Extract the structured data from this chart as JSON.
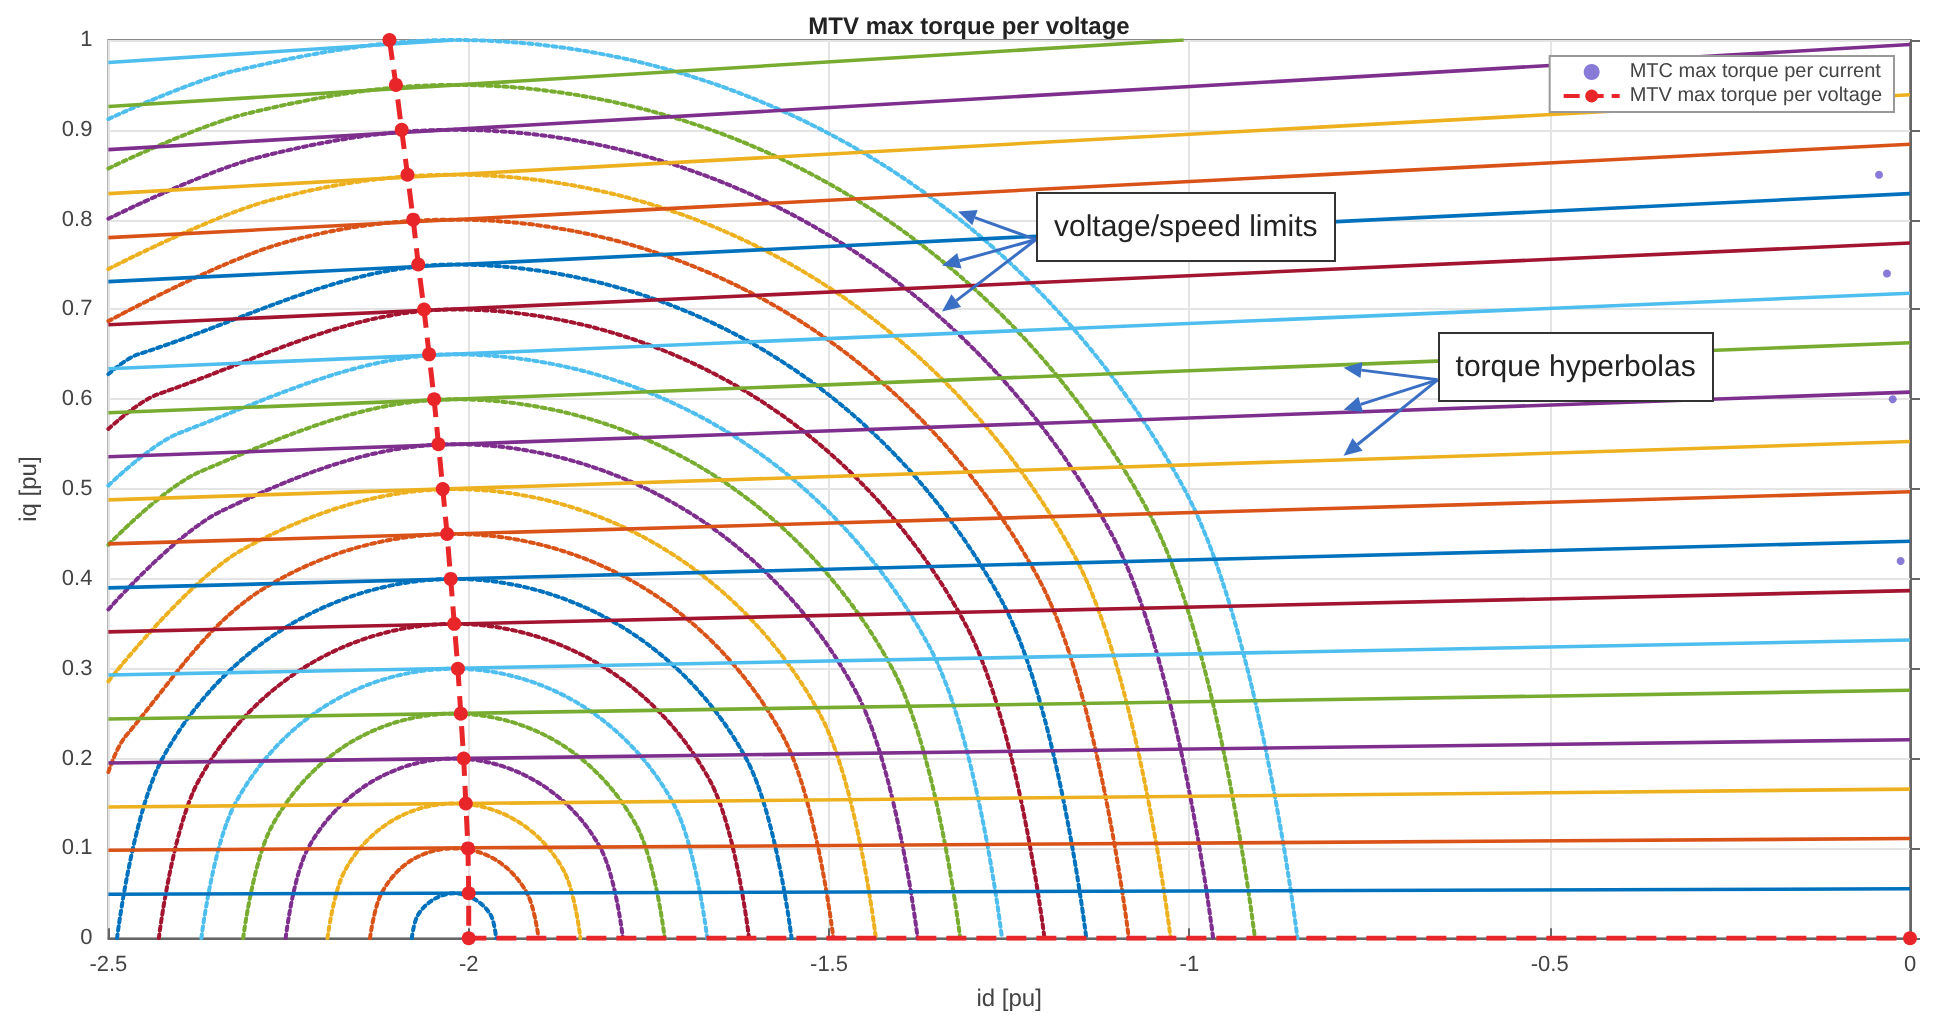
{
  "chart_data": {
    "type": "line",
    "title": "MTV max torque per voltage",
    "xlabel": "id [pu]",
    "ylabel": "iq [pu]",
    "xlim": [
      -2.5,
      0
    ],
    "ylim": [
      0,
      1
    ],
    "xticks": [
      -2.5,
      -2,
      -1.5,
      -1,
      -0.5,
      0
    ],
    "yticks": [
      0,
      0.1,
      0.2,
      0.3,
      0.4,
      0.5,
      0.6,
      0.7,
      0.8,
      0.9,
      1
    ],
    "grid": true,
    "legend": "top right",
    "annotations": [
      {
        "text": "voltage/speed limits",
        "x": -1.321,
        "y": 0.809
      },
      {
        "text": "torque hyperbolas",
        "x": -0.786,
        "y": 0.635
      }
    ],
    "series": [
      {
        "type": "line",
        "color": "#0072bd",
        "line_style": "dotted",
        "marker": "none",
        "x": [
          -2.079,
          -2.071,
          -2.049,
          -2.02,
          -1.991,
          -1.969,
          -1.962
        ],
        "values": [
          0,
          0.025,
          0.043,
          0.05,
          0.043,
          0.025,
          0
        ]
      },
      {
        "type": "line",
        "color": "#d95319",
        "line_style": "dotted",
        "marker": "none",
        "x": [
          -2.137,
          -2.121,
          -2.079,
          -2.02,
          -1.962,
          -1.919,
          -1.903
        ],
        "values": [
          0,
          0.05,
          0.087,
          0.1,
          0.087,
          0.05,
          0
        ]
      },
      {
        "type": "line",
        "color": "#edb120",
        "line_style": "dotted",
        "marker": "none",
        "x": [
          -2.196,
          -2.172,
          -2.108,
          -2.02,
          -1.932,
          -1.868,
          -1.845
        ],
        "values": [
          0,
          0.075,
          0.13,
          0.15,
          0.13,
          0.075,
          0
        ]
      },
      {
        "type": "line",
        "color": "#7e2f8e",
        "line_style": "dotted",
        "marker": "none",
        "x": [
          -2.254,
          -2.223,
          -2.137,
          -2.02,
          -1.903,
          -1.817,
          -1.786
        ],
        "values": [
          0,
          0.1,
          0.173,
          0.2,
          0.173,
          0.1,
          0
        ]
      },
      {
        "type": "line",
        "color": "#77ac30",
        "line_style": "dotted",
        "marker": "none",
        "x": [
          -2.313,
          -2.273,
          -2.166,
          -2.02,
          -1.874,
          -1.767,
          -1.728
        ],
        "values": [
          0,
          0.125,
          0.217,
          0.25,
          0.217,
          0.125,
          0
        ]
      },
      {
        "type": "line",
        "color": "#4dbeee",
        "line_style": "dotted",
        "marker": "none",
        "x": [
          -2.371,
          -2.324,
          -2.196,
          -2.02,
          -1.845,
          -1.716,
          -1.669
        ],
        "values": [
          0,
          0.15,
          0.26,
          0.3,
          0.26,
          0.15,
          0
        ]
      },
      {
        "type": "line",
        "color": "#a2142f",
        "line_style": "dotted",
        "marker": "none",
        "x": [
          -2.43,
          -2.375,
          -2.225,
          -2.02,
          -1.815,
          -1.665,
          -1.611
        ],
        "values": [
          0,
          0.175,
          0.303,
          0.35,
          0.303,
          0.175,
          0
        ]
      },
      {
        "type": "line",
        "color": "#0072bd",
        "line_style": "dotted",
        "marker": "none",
        "x": [
          -2.488,
          -2.425,
          -2.254,
          -2.02,
          -1.786,
          -1.615,
          -1.552
        ],
        "values": [
          0,
          0.2,
          0.346,
          0.4,
          0.346,
          0.2,
          0
        ]
      },
      {
        "type": "line",
        "color": "#d95319",
        "line_style": "dotted",
        "marker": "none",
        "x": [
          -2.5,
          -2.476,
          -2.283,
          -2.02,
          -1.757,
          -1.564,
          -1.494
        ],
        "values": [
          0.185,
          0.225,
          0.39,
          0.45,
          0.39,
          0.225,
          0
        ]
      },
      {
        "type": "line",
        "color": "#edb120",
        "line_style": "dotted",
        "marker": "none",
        "x": [
          -2.5,
          -2.313,
          -2.02,
          -1.728,
          -1.513,
          -1.435
        ],
        "values": [
          0.286,
          0.433,
          0.5,
          0.433,
          0.25,
          0
        ]
      },
      {
        "type": "line",
        "color": "#7e2f8e",
        "line_style": "dotted",
        "marker": "none",
        "x": [
          -2.5,
          -2.342,
          -2.02,
          -1.698,
          -1.463,
          -1.377
        ],
        "values": [
          0.366,
          0.476,
          0.55,
          0.476,
          0.275,
          0
        ]
      },
      {
        "type": "line",
        "color": "#77ac30",
        "line_style": "dotted",
        "marker": "none",
        "x": [
          -2.5,
          -2.371,
          -2.02,
          -1.669,
          -1.412,
          -1.318
        ],
        "values": [
          0.438,
          0.52,
          0.6,
          0.52,
          0.3,
          0
        ]
      },
      {
        "type": "line",
        "color": "#4dbeee",
        "line_style": "dotted",
        "marker": "none",
        "x": [
          -2.5,
          -2.4,
          -2.02,
          -1.64,
          -1.361,
          -1.26
        ],
        "values": [
          0.504,
          0.563,
          0.65,
          0.563,
          0.325,
          0
        ]
      },
      {
        "type": "line",
        "color": "#a2142f",
        "line_style": "dotted",
        "marker": "none",
        "x": [
          -2.5,
          -2.43,
          -2.02,
          -1.61,
          -1.311,
          -1.201
        ],
        "values": [
          0.567,
          0.606,
          0.7,
          0.606,
          0.35,
          0
        ]
      },
      {
        "type": "line",
        "color": "#0072bd",
        "line_style": "dotted",
        "marker": "none",
        "x": [
          -2.5,
          -2.459,
          -2.02,
          -1.581,
          -1.26,
          -1.143
        ],
        "values": [
          0.628,
          0.65,
          0.75,
          0.65,
          0.375,
          0
        ]
      },
      {
        "type": "line",
        "color": "#d95319",
        "line_style": "dotted",
        "marker": "none",
        "x": [
          -2.5,
          -2.262,
          -2.02,
          -1.552,
          -1.209,
          -1.084
        ],
        "values": [
          0.687,
          0.773,
          0.8,
          0.693,
          0.4,
          0
        ]
      },
      {
        "type": "line",
        "color": "#edb120",
        "line_style": "dotted",
        "marker": "none",
        "x": [
          -2.5,
          -2.278,
          -2.02,
          -1.523,
          -1.159,
          -1.026
        ],
        "values": [
          0.745,
          0.821,
          0.85,
          0.736,
          0.425,
          0
        ]
      },
      {
        "type": "line",
        "color": "#7e2f8e",
        "line_style": "dotted",
        "marker": "none",
        "x": [
          -2.5,
          -2.293,
          -2.02,
          -1.493,
          -1.108,
          -0.967
        ],
        "values": [
          0.801,
          0.869,
          0.9,
          0.779,
          0.45,
          0
        ]
      },
      {
        "type": "line",
        "color": "#77ac30",
        "line_style": "dotted",
        "marker": "none",
        "x": [
          -2.5,
          -2.308,
          -2.02,
          -1.464,
          -1.057,
          -0.909
        ],
        "values": [
          0.857,
          0.918,
          0.95,
          0.823,
          0.475,
          0
        ]
      },
      {
        "type": "line",
        "color": "#4dbeee",
        "line_style": "dotted",
        "marker": "none",
        "x": [
          -2.5,
          -2.323,
          -2.02,
          -1.435,
          -1.007,
          -0.85
        ],
        "values": [
          0.912,
          0.966,
          1,
          0.866,
          0.5,
          0
        ]
      },
      {
        "type": "line",
        "color": "#0072bd",
        "line_style": "solid",
        "marker": "none",
        "x": [
          -2.5,
          0
        ],
        "values": [
          0.049,
          0.055
        ]
      },
      {
        "type": "line",
        "color": "#d95319",
        "line_style": "solid",
        "marker": "none",
        "x": [
          -2.5,
          0
        ],
        "values": [
          0.098,
          0.111
        ]
      },
      {
        "type": "line",
        "color": "#edb120",
        "line_style": "solid",
        "marker": "none",
        "x": [
          -2.5,
          0
        ],
        "values": [
          0.146,
          0.166
        ]
      },
      {
        "type": "line",
        "color": "#7e2f8e",
        "line_style": "solid",
        "marker": "none",
        "x": [
          -2.5,
          0
        ],
        "values": [
          0.195,
          0.221
        ]
      },
      {
        "type": "line",
        "color": "#77ac30",
        "line_style": "solid",
        "marker": "none",
        "x": [
          -2.5,
          0
        ],
        "values": [
          0.244,
          0.276
        ]
      },
      {
        "type": "line",
        "color": "#4dbeee",
        "line_style": "solid",
        "marker": "none",
        "x": [
          -2.5,
          0
        ],
        "values": [
          0.293,
          0.332
        ]
      },
      {
        "type": "line",
        "color": "#a2142f",
        "line_style": "solid",
        "marker": "none",
        "x": [
          -2.5,
          0
        ],
        "values": [
          0.341,
          0.387
        ]
      },
      {
        "type": "line",
        "color": "#0072bd",
        "line_style": "solid",
        "marker": "none",
        "x": [
          -2.5,
          0
        ],
        "values": [
          0.39,
          0.442
        ]
      },
      {
        "type": "line",
        "color": "#d95319",
        "line_style": "solid",
        "marker": "none",
        "x": [
          -2.5,
          0
        ],
        "values": [
          0.439,
          0.497
        ]
      },
      {
        "type": "line",
        "color": "#edb120",
        "line_style": "solid",
        "marker": "none",
        "x": [
          -2.5,
          0
        ],
        "values": [
          0.488,
          0.553
        ]
      },
      {
        "type": "line",
        "color": "#7e2f8e",
        "line_style": "solid",
        "marker": "none",
        "x": [
          -2.5,
          0
        ],
        "values": [
          0.536,
          0.608
        ]
      },
      {
        "type": "line",
        "color": "#77ac30",
        "line_style": "solid",
        "marker": "none",
        "x": [
          -2.5,
          0
        ],
        "values": [
          0.585,
          0.663
        ]
      },
      {
        "type": "line",
        "color": "#4dbeee",
        "line_style": "solid",
        "marker": "none",
        "x": [
          -2.5,
          0
        ],
        "values": [
          0.634,
          0.718
        ]
      },
      {
        "type": "line",
        "color": "#a2142f",
        "line_style": "solid",
        "marker": "none",
        "x": [
          -2.5,
          0
        ],
        "values": [
          0.683,
          0.774
        ]
      },
      {
        "type": "line",
        "color": "#0072bd",
        "line_style": "solid",
        "marker": "none",
        "x": [
          -2.5,
          0
        ],
        "values": [
          0.731,
          0.829
        ]
      },
      {
        "type": "line",
        "color": "#d95319",
        "line_style": "solid",
        "marker": "none",
        "x": [
          -2.5,
          0
        ],
        "values": [
          0.78,
          0.884
        ]
      },
      {
        "type": "line",
        "color": "#edb120",
        "line_style": "solid",
        "marker": "none",
        "x": [
          -2.5,
          0
        ],
        "values": [
          0.829,
          0.939
        ]
      },
      {
        "type": "line",
        "color": "#7e2f8e",
        "line_style": "solid",
        "marker": "none",
        "x": [
          -2.5,
          0
        ],
        "values": [
          0.878,
          0.995
        ]
      },
      {
        "type": "line",
        "color": "#77ac30",
        "line_style": "solid",
        "marker": "none",
        "x": [
          -2.5,
          -1.008
        ],
        "values": [
          0.926,
          1
        ]
      },
      {
        "type": "line",
        "color": "#4dbeee",
        "line_style": "solid",
        "marker": "none",
        "x": [
          -2.5,
          -2.02
        ],
        "values": [
          0.975,
          1
        ]
      },
      {
        "type": "scatter",
        "name": "MTC max torque per current",
        "color": "#6a5acd",
        "marker": "circle",
        "x": [
          -0.043,
          -0.032,
          -0.024,
          -0.013
        ],
        "values": [
          0.85,
          0.74,
          0.6,
          0.42
        ]
      },
      {
        "type": "line",
        "name": "MTV max torque per voltage",
        "color": "#e8262a",
        "line_style": "dashed",
        "marker": "circle",
        "x": [
          -2.11,
          -2.101,
          -2.093,
          -2.085,
          -2.077,
          -2.07,
          -2.062,
          -2.055,
          -2.048,
          -2.042,
          -2.036,
          -2.03,
          -2.025,
          -2.02,
          -2.015,
          -2.011,
          -2.007,
          -2.004,
          -2.001,
          -2,
          -2,
          0
        ],
        "values": [
          1,
          0.95,
          0.9,
          0.85,
          0.8,
          0.75,
          0.7,
          0.65,
          0.6,
          0.55,
          0.5,
          0.45,
          0.4,
          0.35,
          0.3,
          0.25,
          0.2,
          0.15,
          0.1,
          0.05,
          0,
          0
        ]
      }
    ]
  }
}
